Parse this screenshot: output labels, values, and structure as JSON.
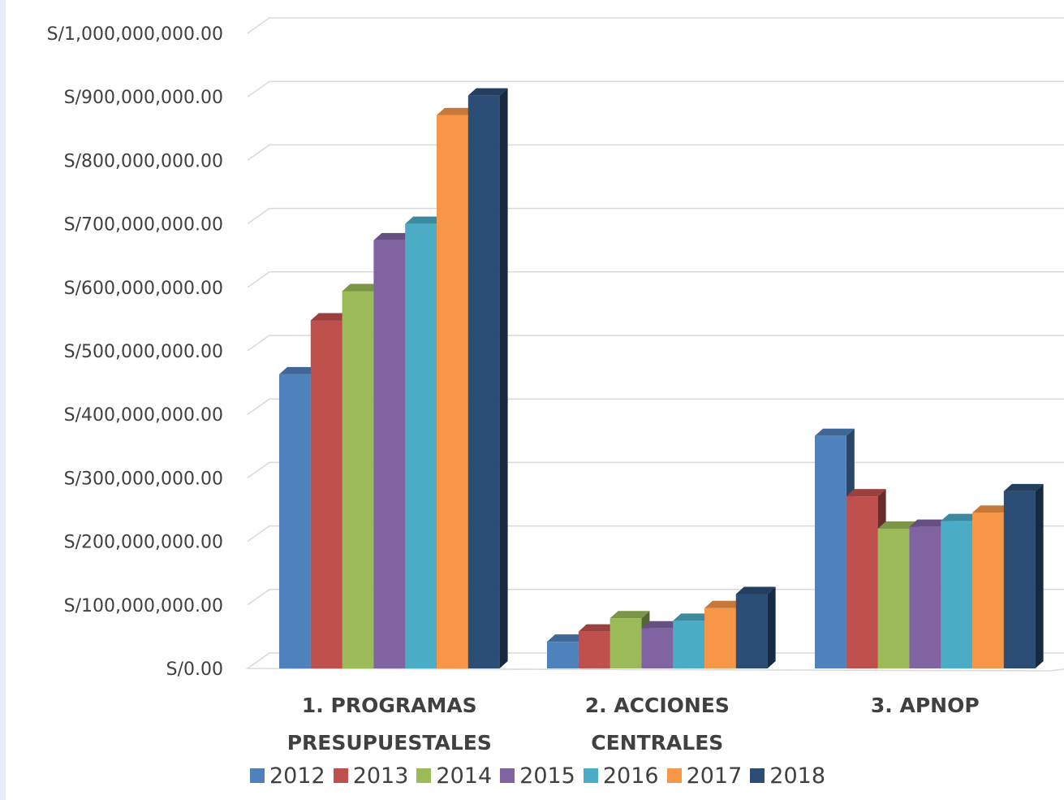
{
  "chart_data": {
    "type": "bar",
    "categories": [
      "1. PROGRAMAS PRESUPUESTALES",
      "2. ACCIONES CENTRALES",
      "3. APNOP"
    ],
    "category_lines": [
      [
        "1. PROGRAMAS",
        "PRESUPUESTALES"
      ],
      [
        "2. ACCIONES",
        "CENTRALES"
      ],
      [
        "3. APNOP"
      ]
    ],
    "y_ticks": [
      "S/0.00",
      "S/100,000,000.00",
      "S/200,000,000.00",
      "S/300,000,000.00",
      "S/400,000,000.00",
      "S/500,000,000.00",
      "S/600,000,000.00",
      "S/700,000,000.00",
      "S/800,000,000.00",
      "S/900,000,000.00",
      "S/1,000,000,000.00"
    ],
    "ylim": [
      0,
      1000000000
    ],
    "grid": true,
    "legend_position": "bottom",
    "style": "3d-clustered-column",
    "series": [
      {
        "name": "2012",
        "color": "#4f81bd",
        "values": [
          463000000,
          42000000,
          366000000
        ]
      },
      {
        "name": "2013",
        "color": "#c0504d",
        "values": [
          548000000,
          58000000,
          271000000
        ]
      },
      {
        "name": "2014",
        "color": "#9bbb59",
        "values": [
          594000000,
          79000000,
          220000000
        ]
      },
      {
        "name": "2015",
        "color": "#8064a2",
        "values": [
          674000000,
          63000000,
          223000000
        ]
      },
      {
        "name": "2016",
        "color": "#4bacc6",
        "values": [
          700000000,
          75000000,
          232000000
        ]
      },
      {
        "name": "2017",
        "color": "#f79646",
        "values": [
          871000000,
          95000000,
          245000000
        ]
      },
      {
        "name": "2018",
        "color": "#2c4d75",
        "values": [
          902000000,
          117000000,
          279000000
        ]
      }
    ]
  }
}
